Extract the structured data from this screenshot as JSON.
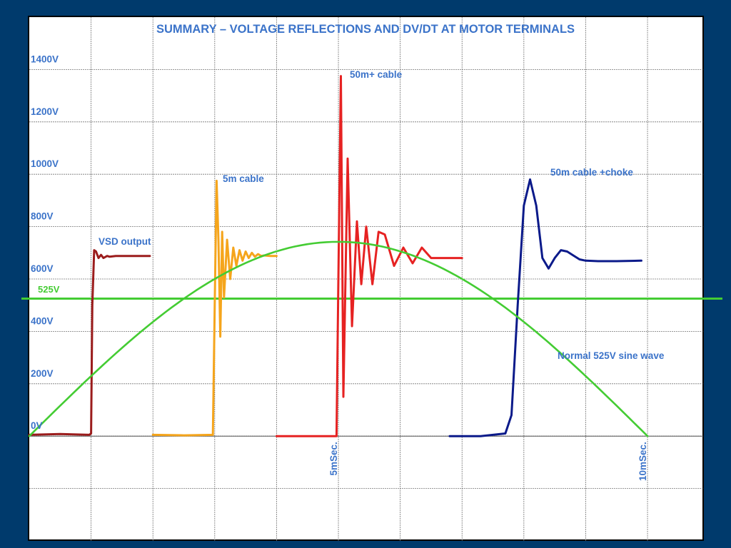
{
  "colors": {
    "slide_bg": "#003a6c",
    "label_blue": "#3b73c9",
    "grid": "#777777",
    "vsd": "#9b1c1c",
    "cable5m": "#f5a51c",
    "cable50m": "#e62222",
    "choke": "#0b1a8a",
    "sine": "#44cc33"
  },
  "chart_data": {
    "type": "line",
    "title": "SUMMARY – VOLTAGE REFLECTIONS AND DV/DT AT MOTOR TERMINALS",
    "xlabel": "",
    "ylabel": "",
    "x_unit": "ms",
    "xlim": [
      0,
      10.9
    ],
    "ylim": [
      -400,
      1600
    ],
    "grid": true,
    "y_tick_labels": [
      {
        "value": 0,
        "label": "0V"
      },
      {
        "value": 200,
        "label": "200V"
      },
      {
        "value": 400,
        "label": "400V"
      },
      {
        "value": 600,
        "label": "600V"
      },
      {
        "value": 800,
        "label": "800V"
      },
      {
        "value": 1000,
        "label": "1000V"
      },
      {
        "value": 1200,
        "label": "1200V"
      },
      {
        "value": 1400,
        "label": "1400V"
      }
    ],
    "x_tick_labels": [
      {
        "value": 5,
        "label": "5mSec."
      },
      {
        "value": 10,
        "label": "10mSec."
      }
    ],
    "reference_line": {
      "value": 525,
      "label": "525V"
    },
    "series": [
      {
        "name": "VSD output",
        "color_key": "vsd",
        "x": [
          0,
          0.5,
          0.97,
          1.0,
          1.02,
          1.05,
          1.08,
          1.12,
          1.16,
          1.2,
          1.26,
          1.3,
          1.4,
          1.95
        ],
        "y": [
          5,
          8,
          5,
          10,
          500,
          710,
          705,
          680,
          692,
          680,
          688,
          685,
          688,
          688
        ]
      },
      {
        "name": "5m cable",
        "color_key": "cable5m",
        "x": [
          2.0,
          2.5,
          2.97,
          3.0,
          3.03,
          3.06,
          3.09,
          3.12,
          3.15,
          3.2,
          3.25,
          3.3,
          3.35,
          3.4,
          3.45,
          3.5,
          3.55,
          3.6,
          3.65,
          3.7,
          3.75,
          3.8,
          3.9,
          4.0
        ],
        "y": [
          5,
          3,
          5,
          500,
          975,
          750,
          380,
          780,
          530,
          750,
          600,
          720,
          650,
          710,
          670,
          705,
          680,
          700,
          685,
          695,
          688,
          690,
          688,
          688
        ]
      },
      {
        "name": "50m+ cable",
        "color_key": "cable50m",
        "x": [
          4.0,
          4.5,
          4.97,
          5.0,
          5.04,
          5.08,
          5.15,
          5.22,
          5.3,
          5.37,
          5.45,
          5.55,
          5.65,
          5.75,
          5.9,
          6.05,
          6.2,
          6.35,
          6.5,
          6.6,
          7.0
        ],
        "y": [
          0,
          0,
          0,
          600,
          1375,
          150,
          1060,
          420,
          820,
          580,
          800,
          580,
          780,
          770,
          650,
          720,
          660,
          720,
          680,
          680,
          680
        ]
      },
      {
        "name": "50m cable +choke",
        "color_key": "choke",
        "x": [
          6.8,
          7.3,
          7.7,
          7.8,
          7.9,
          8.0,
          8.1,
          8.2,
          8.3,
          8.4,
          8.5,
          8.6,
          8.7,
          8.8,
          8.9,
          9.0,
          9.2,
          9.5,
          9.9
        ],
        "y": [
          0,
          0,
          10,
          80,
          500,
          880,
          980,
          880,
          680,
          640,
          680,
          710,
          705,
          690,
          675,
          670,
          668,
          668,
          670
        ]
      },
      {
        "name": "Normal 525V sine wave",
        "color_key": "sine",
        "function": "sine",
        "amplitude": 742,
        "half_period_ms": 10
      }
    ]
  }
}
